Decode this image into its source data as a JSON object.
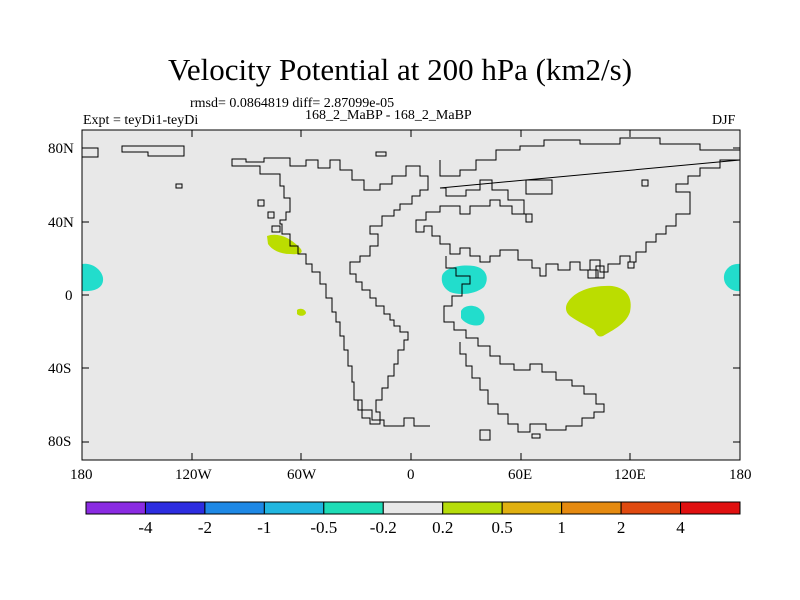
{
  "title": "Velocity Potential at 200 hPa (km2/s)",
  "stats": "rmsd= 0.0864819 diff= 2.87099e-05",
  "expt": "Expt = teyDi1-teyDi",
  "cases": "168_2_MaBP - 168_2_MaBP",
  "season": "DJF",
  "lon_labels": [
    "180",
    "120W",
    "60W",
    "0",
    "60E",
    "120E",
    "180"
  ],
  "lat_labels": [
    "80N",
    "40N",
    "0",
    "40S",
    "80S"
  ],
  "colorbar": {
    "labels": [
      "-4",
      "-2",
      "-1",
      "-0.5",
      "-0.2",
      "0.2",
      "0.5",
      "1",
      "2",
      "4"
    ],
    "colors": [
      "#8a2be2",
      "#2d2de0",
      "#1e88e5",
      "#21b6e0",
      "#1edcb6",
      "#e8e8e8",
      "#b6dc0a",
      "#e0b010",
      "#e58a10",
      "#e04a10",
      "#e01010"
    ]
  },
  "colors": {
    "land_bg": "#e8e8e8",
    "positive_shade": "#bbdd00",
    "negative_shade": "#22ddcc",
    "coastline": "#000000"
  }
}
